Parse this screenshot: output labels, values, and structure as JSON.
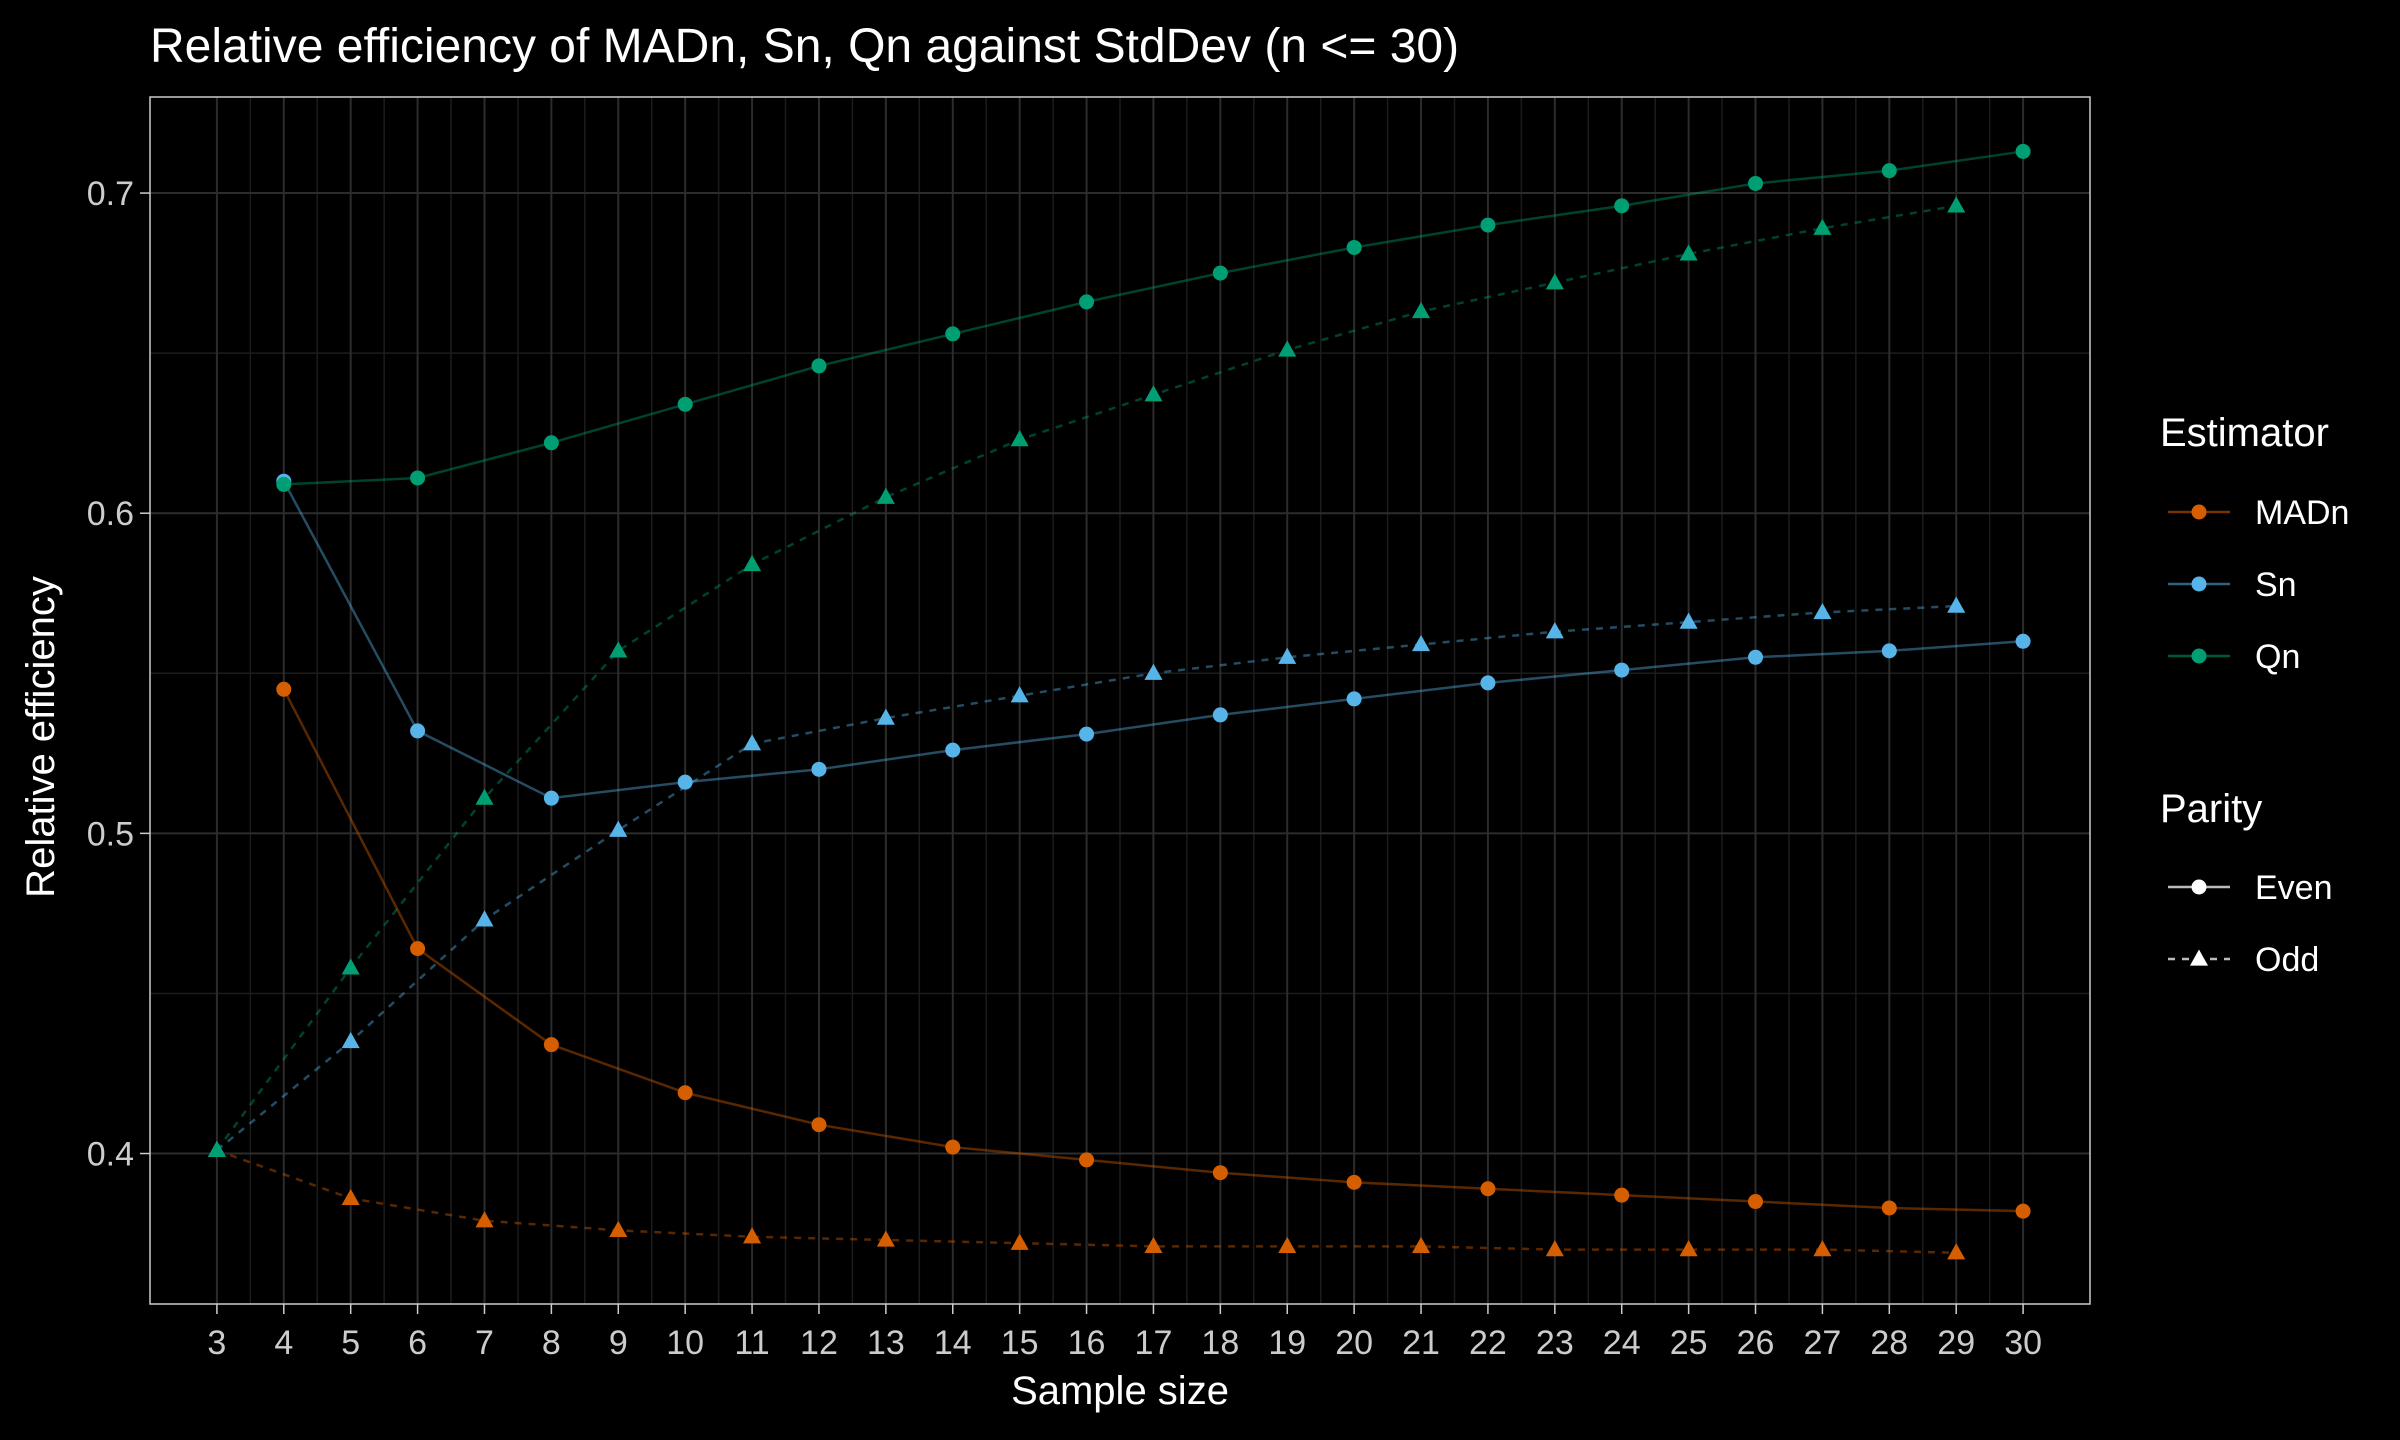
{
  "chart_data": {
    "type": "line",
    "title": "Relative efficiency of MADn, Sn, Qn against StdDev (n <= 30)",
    "xlabel": "Sample size",
    "ylabel": "Relative efficiency",
    "xlim": [
      2,
      31
    ],
    "ylim": [
      0.353,
      0.73
    ],
    "x_ticks": [
      3,
      4,
      5,
      6,
      7,
      8,
      9,
      10,
      11,
      12,
      13,
      14,
      15,
      16,
      17,
      18,
      19,
      20,
      21,
      22,
      23,
      24,
      25,
      26,
      27,
      28,
      29,
      30
    ],
    "y_ticks": [
      0.4,
      0.5,
      0.6,
      0.7
    ],
    "y_minor_ticks": [
      0.45,
      0.55,
      0.65
    ],
    "grid": true,
    "legend_placement": "right",
    "legends": [
      {
        "title": "Estimator",
        "entries": [
          {
            "label": "MADn",
            "color": "#D55E00"
          },
          {
            "label": "Sn",
            "color": "#56B4E9"
          },
          {
            "label": "Qn",
            "color": "#009E73"
          }
        ]
      },
      {
        "title": "Parity",
        "entries": [
          {
            "label": "Even",
            "shape": "circle",
            "line": "solid"
          },
          {
            "label": "Odd",
            "shape": "triangle",
            "line": "dashed"
          }
        ]
      }
    ],
    "series": [
      {
        "estimator": "MADn",
        "parity": "Even",
        "color": "#D55E00",
        "x": [
          4,
          6,
          8,
          10,
          12,
          14,
          16,
          18,
          20,
          22,
          24,
          26,
          28,
          30
        ],
        "y": [
          0.545,
          0.464,
          0.434,
          0.419,
          0.409,
          0.402,
          0.398,
          0.394,
          0.391,
          0.389,
          0.387,
          0.385,
          0.383,
          0.382
        ]
      },
      {
        "estimator": "MADn",
        "parity": "Odd",
        "color": "#D55E00",
        "x": [
          3,
          5,
          7,
          9,
          11,
          13,
          15,
          17,
          19,
          21,
          23,
          25,
          27,
          29
        ],
        "y": [
          0.401,
          0.386,
          0.379,
          0.376,
          0.374,
          0.373,
          0.372,
          0.371,
          0.371,
          0.371,
          0.37,
          0.37,
          0.37,
          0.369
        ]
      },
      {
        "estimator": "Sn",
        "parity": "Even",
        "color": "#56B4E9",
        "x": [
          4,
          6,
          8,
          10,
          12,
          14,
          16,
          18,
          20,
          22,
          24,
          26,
          28,
          30
        ],
        "y": [
          0.61,
          0.532,
          0.511,
          0.516,
          0.52,
          0.526,
          0.531,
          0.537,
          0.542,
          0.547,
          0.551,
          0.555,
          0.557,
          0.56
        ]
      },
      {
        "estimator": "Sn",
        "parity": "Odd",
        "color": "#56B4E9",
        "x": [
          3,
          5,
          7,
          9,
          11,
          13,
          15,
          17,
          19,
          21,
          23,
          25,
          27,
          29
        ],
        "y": [
          0.401,
          0.435,
          0.473,
          0.501,
          0.528,
          0.536,
          0.543,
          0.55,
          0.555,
          0.559,
          0.563,
          0.566,
          0.569,
          0.571
        ]
      },
      {
        "estimator": "Qn",
        "parity": "Even",
        "color": "#009E73",
        "x": [
          4,
          6,
          8,
          10,
          12,
          14,
          16,
          18,
          20,
          22,
          24,
          26,
          28,
          30
        ],
        "y": [
          0.609,
          0.611,
          0.622,
          0.634,
          0.646,
          0.656,
          0.666,
          0.675,
          0.683,
          0.69,
          0.696,
          0.703,
          0.707,
          0.713
        ]
      },
      {
        "estimator": "Qn",
        "parity": "Odd",
        "color": "#009E73",
        "x": [
          3,
          5,
          7,
          9,
          11,
          13,
          15,
          17,
          19,
          21,
          23,
          25,
          27,
          29
        ],
        "y": [
          0.401,
          0.458,
          0.511,
          0.557,
          0.584,
          0.605,
          0.623,
          0.637,
          0.651,
          0.663,
          0.672,
          0.681,
          0.689,
          0.696
        ]
      }
    ]
  }
}
